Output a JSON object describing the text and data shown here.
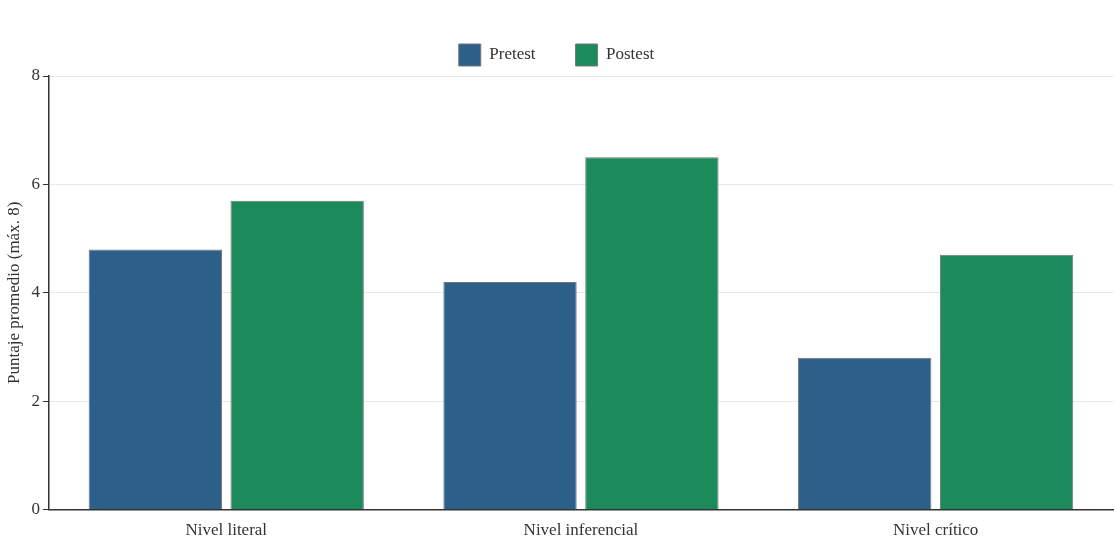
{
  "chart_data": {
    "type": "bar",
    "ylabel": "Puntaje promedio (máx. 8)",
    "categories": [
      "Nivel literal",
      "Nivel inferencial",
      "Nivel crítico"
    ],
    "series": [
      {
        "name": "Pretest",
        "color": "#2c5f8a",
        "values": [
          4.8,
          4.2,
          2.8
        ]
      },
      {
        "name": "Postest",
        "color": "#1c8a5a",
        "values": [
          5.7,
          6.5,
          4.7
        ]
      }
    ],
    "ylim": [
      0,
      8
    ],
    "yticks": [
      0,
      2,
      4,
      6,
      8
    ],
    "grid": "y",
    "legend": "top"
  }
}
